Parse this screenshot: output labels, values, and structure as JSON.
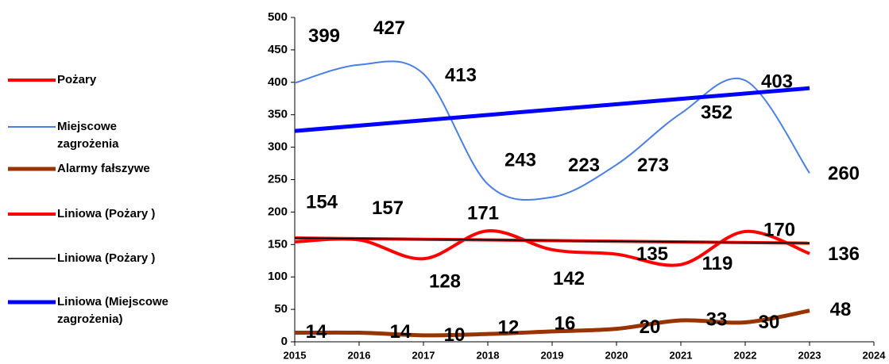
{
  "chart_data": {
    "type": "line",
    "x": [
      2015,
      2016,
      2017,
      2018,
      2019,
      2020,
      2021,
      2022,
      2023
    ],
    "xlim": [
      2015,
      2024
    ],
    "xticks": [
      2015,
      2016,
      2017,
      2018,
      2019,
      2020,
      2021,
      2022,
      2023,
      2024
    ],
    "ylim": [
      0,
      500
    ],
    "yticks": [
      0,
      50,
      100,
      150,
      200,
      250,
      300,
      350,
      400,
      450,
      500
    ],
    "legend": "left",
    "series": [
      {
        "name": "Pożary",
        "color": "#ff0000",
        "style": "smooth",
        "values": [
          154,
          157,
          128,
          171,
          142,
          135,
          119,
          170,
          136
        ]
      },
      {
        "name": "Miejscowe zagrożenia",
        "color": "#4a7fe8",
        "style": "smooth",
        "values": [
          399,
          427,
          413,
          243,
          223,
          273,
          352,
          403,
          260
        ]
      },
      {
        "name": "Alarmy fałszywe",
        "color": "#993300",
        "style": "smooth",
        "values": [
          14,
          14,
          10,
          12,
          16,
          20,
          33,
          30,
          48
        ]
      },
      {
        "name": "Liniowa (Pożary )",
        "color": "#ff0000",
        "style": "linear",
        "x": [
          2015,
          2023
        ],
        "values": [
          160,
          152
        ]
      },
      {
        "name": "Liniowa (Pożary )",
        "color": "#000000",
        "style": "linear",
        "x": [
          2015,
          2023
        ],
        "values": [
          160,
          152
        ]
      },
      {
        "name": "Liniowa (Miejscowe zagrożenia)",
        "color": "#0000ff",
        "style": "linear",
        "x": [
          2015,
          2023
        ],
        "values": [
          325,
          391
        ]
      }
    ]
  }
}
